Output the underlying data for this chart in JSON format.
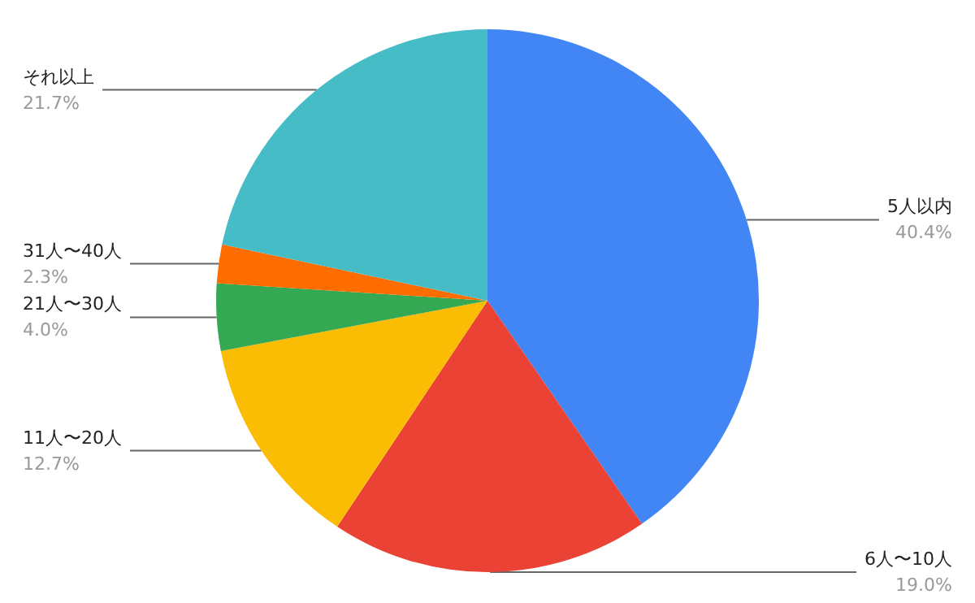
{
  "chart_data": {
    "type": "pie",
    "categories": [
      "5人以内",
      "6人〜10人",
      "11人〜20人",
      "21人〜30人",
      "31人〜40人",
      "それ以上"
    ],
    "values": [
      40.4,
      19.0,
      12.7,
      4.0,
      2.3,
      21.7
    ],
    "value_labels": [
      "40.4%",
      "19.0%",
      "12.7%",
      "4.0%",
      "2.3%",
      "21.7%"
    ],
    "colors": [
      "#4285f4",
      "#ea4335",
      "#fbbc04",
      "#34a853",
      "#ff6d01",
      "#46bdc6"
    ],
    "legend": false
  }
}
